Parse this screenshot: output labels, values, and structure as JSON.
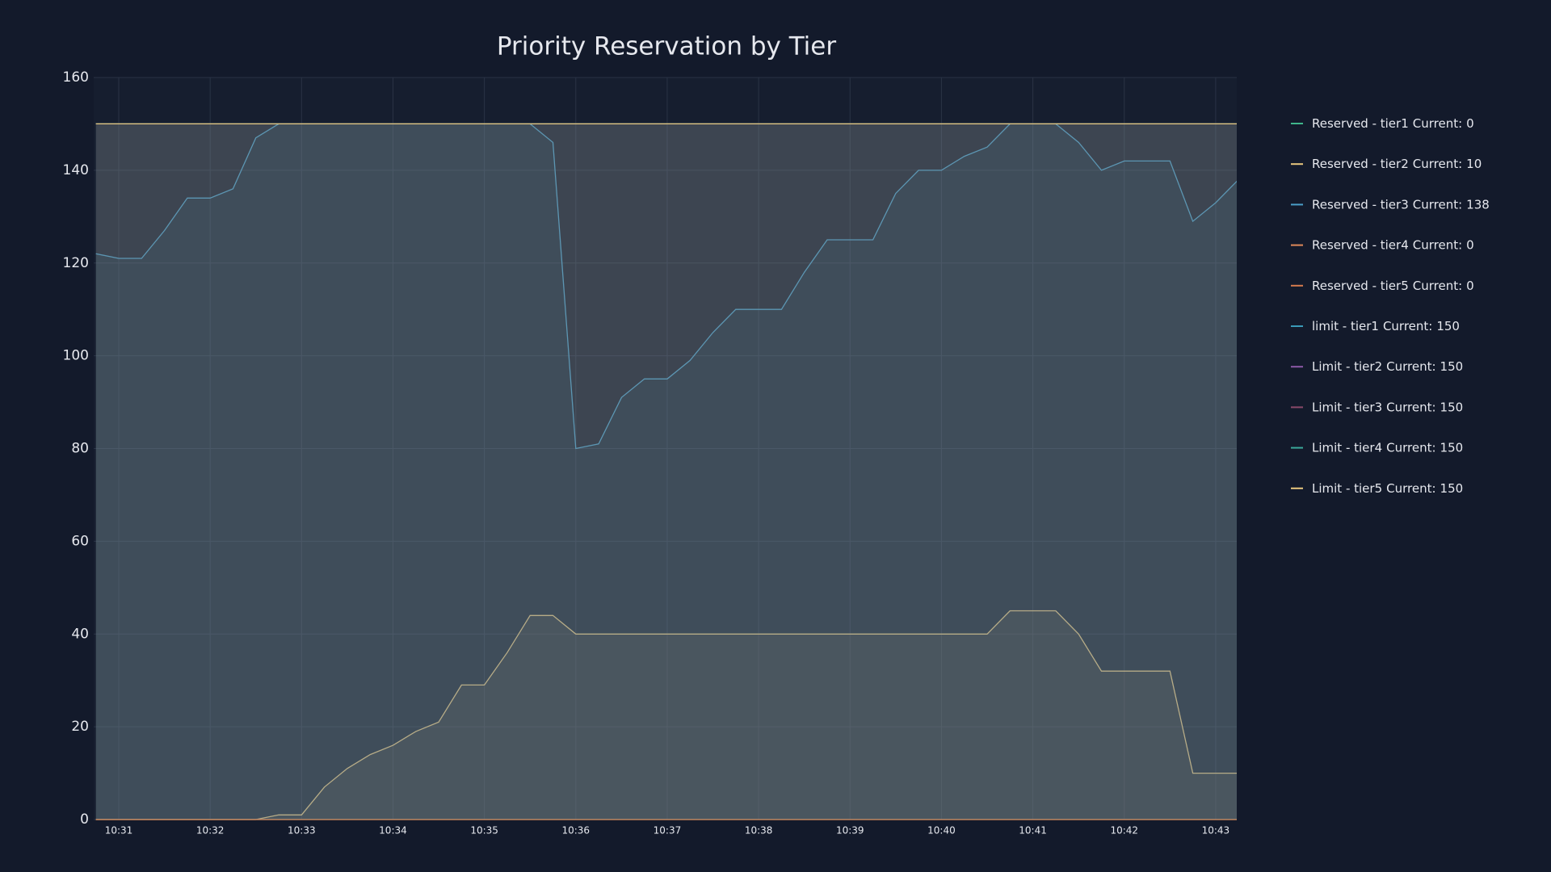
{
  "chart_data": {
    "type": "line",
    "title": "Priority Reservation by Tier",
    "categories": [
      null,
      "10:31",
      null,
      null,
      null,
      "10:32",
      null,
      null,
      null,
      "10:33",
      null,
      null,
      null,
      "10:34",
      null,
      null,
      null,
      "10:35",
      null,
      null,
      null,
      "10:36",
      null,
      null,
      null,
      "10:37",
      null,
      null,
      null,
      "10:38",
      null,
      null,
      null,
      "10:39",
      null,
      null,
      null,
      "10:40",
      null,
      null,
      null,
      "10:41",
      null,
      null,
      null,
      "10:42",
      null,
      null,
      null,
      "10:43",
      null
    ],
    "ylim": [
      0,
      160
    ],
    "yticks": [
      0,
      20,
      40,
      60,
      80,
      100,
      120,
      140,
      160
    ],
    "grid": true,
    "area": true,
    "legend_current_label": "Current:",
    "series": [
      {
        "name": "Reserved - tier1",
        "color": "#3fb68b",
        "values": [
          0,
          0,
          0,
          0,
          0,
          0,
          0,
          0,
          0,
          0,
          0,
          0,
          0,
          0,
          0,
          0,
          0,
          0,
          0,
          0,
          0,
          0,
          0,
          0,
          0,
          0,
          0,
          0,
          0,
          0,
          0,
          0,
          0,
          0,
          0,
          0,
          0,
          0,
          0,
          0,
          0,
          0,
          0,
          0,
          0,
          0,
          0,
          0,
          0,
          0,
          0
        ]
      },
      {
        "name": "Reserved - tier2",
        "color": "#e8c77e",
        "values": [
          0,
          0,
          0,
          0,
          0,
          0,
          0,
          0,
          1,
          1,
          7,
          11,
          14,
          16,
          19,
          21,
          29,
          29,
          36,
          44,
          44,
          40,
          40,
          40,
          40,
          40,
          40,
          40,
          40,
          40,
          40,
          40,
          40,
          40,
          40,
          40,
          40,
          40,
          40,
          40,
          45,
          45,
          45,
          40,
          32,
          32,
          32,
          32,
          10,
          10,
          10
        ]
      },
      {
        "name": "Reserved - tier3",
        "color": "#4a9fc8",
        "values": [
          122,
          121,
          121,
          127,
          134,
          134,
          136,
          147,
          150,
          150,
          150,
          150,
          150,
          150,
          150,
          150,
          150,
          150,
          150,
          150,
          146,
          80,
          81,
          91,
          95,
          95,
          99,
          105,
          110,
          110,
          110,
          118,
          125,
          125,
          125,
          135,
          140,
          140,
          143,
          145,
          150,
          150,
          150,
          146,
          140,
          142,
          142,
          142,
          129,
          133,
          138
        ]
      },
      {
        "name": "Reserved - tier4",
        "color": "#e0895a",
        "values": [
          0,
          0,
          0,
          0,
          0,
          0,
          0,
          0,
          0,
          0,
          0,
          0,
          0,
          0,
          0,
          0,
          0,
          0,
          0,
          0,
          0,
          0,
          0,
          0,
          0,
          0,
          0,
          0,
          0,
          0,
          0,
          0,
          0,
          0,
          0,
          0,
          0,
          0,
          0,
          0,
          0,
          0,
          0,
          0,
          0,
          0,
          0,
          0,
          0,
          0,
          0
        ]
      },
      {
        "name": "Reserved - tier5",
        "color": "#d67b4e",
        "values": [
          0,
          0,
          0,
          0,
          0,
          0,
          0,
          0,
          0,
          0,
          0,
          0,
          0,
          0,
          0,
          0,
          0,
          0,
          0,
          0,
          0,
          0,
          0,
          0,
          0,
          0,
          0,
          0,
          0,
          0,
          0,
          0,
          0,
          0,
          0,
          0,
          0,
          0,
          0,
          0,
          0,
          0,
          0,
          0,
          0,
          0,
          0,
          0,
          0,
          0,
          0
        ]
      },
      {
        "name": "limit - tier1",
        "color": "#3a9ab8",
        "values": [
          150,
          150,
          150,
          150,
          150,
          150,
          150,
          150,
          150,
          150,
          150,
          150,
          150,
          150,
          150,
          150,
          150,
          150,
          150,
          150,
          150,
          150,
          150,
          150,
          150,
          150,
          150,
          150,
          150,
          150,
          150,
          150,
          150,
          150,
          150,
          150,
          150,
          150,
          150,
          150,
          150,
          150,
          150,
          150,
          150,
          150,
          150,
          150,
          150,
          150,
          150
        ]
      },
      {
        "name": "Limit - tier2",
        "color": "#8c5aa8",
        "values": [
          150,
          150,
          150,
          150,
          150,
          150,
          150,
          150,
          150,
          150,
          150,
          150,
          150,
          150,
          150,
          150,
          150,
          150,
          150,
          150,
          150,
          150,
          150,
          150,
          150,
          150,
          150,
          150,
          150,
          150,
          150,
          150,
          150,
          150,
          150,
          150,
          150,
          150,
          150,
          150,
          150,
          150,
          150,
          150,
          150,
          150,
          150,
          150,
          150,
          150,
          150
        ]
      },
      {
        "name": "Limit - tier3",
        "color": "#8a4a6a",
        "values": [
          150,
          150,
          150,
          150,
          150,
          150,
          150,
          150,
          150,
          150,
          150,
          150,
          150,
          150,
          150,
          150,
          150,
          150,
          150,
          150,
          150,
          150,
          150,
          150,
          150,
          150,
          150,
          150,
          150,
          150,
          150,
          150,
          150,
          150,
          150,
          150,
          150,
          150,
          150,
          150,
          150,
          150,
          150,
          150,
          150,
          150,
          150,
          150,
          150,
          150,
          150
        ]
      },
      {
        "name": "Limit - tier4",
        "color": "#3aa89a",
        "values": [
          150,
          150,
          150,
          150,
          150,
          150,
          150,
          150,
          150,
          150,
          150,
          150,
          150,
          150,
          150,
          150,
          150,
          150,
          150,
          150,
          150,
          150,
          150,
          150,
          150,
          150,
          150,
          150,
          150,
          150,
          150,
          150,
          150,
          150,
          150,
          150,
          150,
          150,
          150,
          150,
          150,
          150,
          150,
          150,
          150,
          150,
          150,
          150,
          150,
          150,
          150
        ]
      },
      {
        "name": "Limit - tier5",
        "color": "#e8c77e",
        "values": [
          150,
          150,
          150,
          150,
          150,
          150,
          150,
          150,
          150,
          150,
          150,
          150,
          150,
          150,
          150,
          150,
          150,
          150,
          150,
          150,
          150,
          150,
          150,
          150,
          150,
          150,
          150,
          150,
          150,
          150,
          150,
          150,
          150,
          150,
          150,
          150,
          150,
          150,
          150,
          150,
          150,
          150,
          150,
          150,
          150,
          150,
          150,
          150,
          150,
          150,
          150
        ]
      }
    ]
  }
}
